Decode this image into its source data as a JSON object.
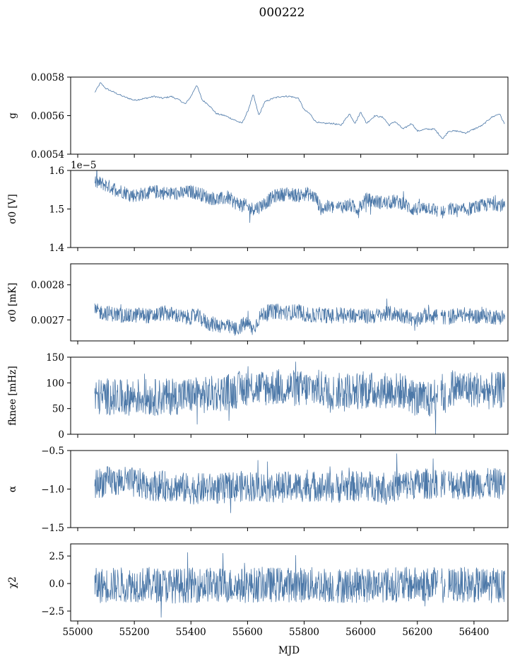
{
  "figure": {
    "title": "000222",
    "xlabel": "MJD",
    "x_tick_labels": [
      "55000",
      "55200",
      "55400",
      "55600",
      "55800",
      "56000",
      "56200",
      "56400"
    ]
  },
  "chart_data": [
    {
      "type": "line",
      "ylabel": "g",
      "ylabel_math": "g",
      "ylim": [
        0.0054,
        0.0058
      ],
      "yticks": [
        0.0054,
        0.0056,
        0.0058
      ],
      "ytick_labels": [
        "0.0054",
        "0.0056",
        "0.0058"
      ],
      "xlim": [
        54975,
        56520
      ],
      "series": [
        {
          "color": "#4c78a8",
          "x": [
            55060,
            55080,
            55100,
            55130,
            55160,
            55200,
            55240,
            55270,
            55300,
            55330,
            55360,
            55380,
            55400,
            55420,
            55440,
            55460,
            55490,
            55520,
            55550,
            55580,
            55600,
            55620,
            55640,
            55660,
            55690,
            55720,
            55750,
            55780,
            55800,
            55820,
            55840,
            55860,
            55880,
            55900,
            55930,
            55960,
            55980,
            56000,
            56020,
            56050,
            56080,
            56100,
            56120,
            56150,
            56180,
            56200,
            56230,
            56260,
            56290,
            56310,
            56340,
            56370,
            56400,
            56430,
            56460,
            56490,
            56510
          ],
          "values": [
            0.00572,
            0.00577,
            0.00574,
            0.00572,
            0.0057,
            0.00568,
            0.00569,
            0.0057,
            0.00569,
            0.0057,
            0.00568,
            0.00566,
            0.0057,
            0.00576,
            0.00568,
            0.00566,
            0.00561,
            0.0056,
            0.00558,
            0.00556,
            0.00562,
            0.00571,
            0.0056,
            0.00567,
            0.00569,
            0.0057,
            0.0057,
            0.00569,
            0.00563,
            0.00561,
            0.00557,
            0.00556,
            0.00556,
            0.00556,
            0.00555,
            0.00561,
            0.00556,
            0.00562,
            0.00556,
            0.0056,
            0.00559,
            0.00555,
            0.00557,
            0.00553,
            0.00556,
            0.00552,
            0.00553,
            0.00553,
            0.00548,
            0.00552,
            0.00552,
            0.00551,
            0.00553,
            0.00555,
            0.00559,
            0.00561,
            0.00555
          ]
        }
      ]
    },
    {
      "type": "line",
      "ylabel": "σ0 [V]",
      "ylabel_math": "sigma0",
      "ylabel_unit": "[V]",
      "offset_text": "1e−5",
      "ylim": [
        1.4,
        1.6
      ],
      "yticks": [
        1.4,
        1.5,
        1.6
      ],
      "ytick_labels": [
        "1.4",
        "1.5",
        "1.6"
      ],
      "xlim": [
        54975,
        56520
      ],
      "series": [
        {
          "color": "#4c78a8",
          "band": 0.018,
          "x": [
            55060,
            55090,
            55120,
            55160,
            55200,
            55240,
            55280,
            55320,
            55360,
            55400,
            55430,
            55460,
            55500,
            55530,
            55560,
            55590,
            55610,
            55640,
            55670,
            55700,
            55740,
            55780,
            55810,
            55840,
            55860,
            55880,
            55920,
            55960,
            55990,
            56020,
            56050,
            56090,
            56120,
            56150,
            56180,
            56210,
            56240,
            56270,
            56290,
            56320,
            56350,
            56380,
            56410,
            56440,
            56470,
            56500,
            56510
          ],
          "values": [
            1.57,
            1.565,
            1.555,
            1.545,
            1.535,
            1.54,
            1.545,
            1.54,
            1.54,
            1.545,
            1.54,
            1.53,
            1.525,
            1.53,
            1.515,
            1.51,
            1.5,
            1.505,
            1.52,
            1.535,
            1.54,
            1.535,
            1.54,
            1.53,
            1.5,
            1.505,
            1.505,
            1.51,
            1.5,
            1.525,
            1.52,
            1.515,
            1.52,
            1.515,
            1.5,
            1.5,
            1.505,
            1.495,
            1.49,
            1.5,
            1.495,
            1.5,
            1.505,
            1.51,
            1.515,
            1.51,
            1.505
          ]
        }
      ]
    },
    {
      "type": "line",
      "ylabel": "σ0 [mK]",
      "ylabel_math": "sigma0",
      "ylabel_unit": "[mK]",
      "ylim": [
        0.00264,
        0.00286
      ],
      "yticks": [
        0.0027,
        0.0028
      ],
      "ytick_labels": [
        "0.0027",
        "0.0028"
      ],
      "xlim": [
        54975,
        56520
      ],
      "series": [
        {
          "color": "#4c78a8",
          "band": 2.2e-05,
          "x": [
            55060,
            55100,
            55140,
            55180,
            55220,
            55260,
            55300,
            55340,
            55380,
            55420,
            55460,
            55500,
            55540,
            55560,
            55580,
            55600,
            55620,
            55640,
            55660,
            55700,
            55740,
            55780,
            55820,
            55860,
            55900,
            55940,
            55980,
            56020,
            56060,
            56100,
            56140,
            56170,
            56190,
            56220,
            56260,
            56280,
            56300,
            56320,
            56360,
            56400,
            56440,
            56480,
            56510
          ],
          "values": [
            0.002725,
            0.00272,
            0.002715,
            0.00271,
            0.002715,
            0.00271,
            0.00272,
            0.002715,
            0.002705,
            0.002712,
            0.00269,
            0.002685,
            0.002678,
            0.002672,
            0.002685,
            0.00269,
            0.002672,
            0.002705,
            0.00272,
            0.002725,
            0.00272,
            0.002725,
            0.00271,
            0.002715,
            0.00271,
            0.002718,
            0.002713,
            0.00271,
            0.002712,
            0.002718,
            0.002715,
            0.002708,
            0.00269,
            0.002712,
            0.002715,
            0.002712,
            0.002705,
            0.00271,
            0.002715,
            0.00271,
            0.002712,
            0.002708,
            0.00271
          ]
        }
      ]
    },
    {
      "type": "line",
      "ylabel": "fknee [mHz]",
      "ylabel_math": "fknee",
      "ylabel_unit": "[mHz]",
      "ylim": [
        0,
        150
      ],
      "yticks": [
        0,
        50,
        100,
        150
      ],
      "ytick_labels": [
        "0",
        "50",
        "100",
        "150"
      ],
      "xlim": [
        54975,
        56520
      ],
      "series": [
        {
          "color": "#4c78a8",
          "band": 36,
          "x": [
            55060,
            55100,
            55150,
            55200,
            55250,
            55300,
            55350,
            55400,
            55450,
            55500,
            55550,
            55600,
            55650,
            55700,
            55750,
            55800,
            55850,
            55900,
            55950,
            56000,
            56050,
            56100,
            56150,
            56200,
            56250,
            56280,
            56300,
            56320,
            56350,
            56400,
            56450,
            56510
          ],
          "values": [
            72,
            74,
            70,
            74,
            72,
            72,
            74,
            76,
            76,
            80,
            84,
            92,
            90,
            92,
            90,
            88,
            90,
            82,
            86,
            84,
            86,
            86,
            84,
            68,
            66,
            95,
            64,
            92,
            90,
            88,
            84,
            86
          ]
        }
      ]
    },
    {
      "type": "line",
      "ylabel": "α",
      "ylabel_math": "alpha",
      "ylim": [
        -1.5,
        -0.5
      ],
      "yticks": [
        -1.5,
        -1.0,
        -0.5
      ],
      "ytick_labels": [
        "−1.5",
        "−1.0",
        "−0.5"
      ],
      "xlim": [
        54975,
        56520
      ],
      "series": [
        {
          "color": "#4c78a8",
          "band": 0.2,
          "x": [
            55060,
            55100,
            55150,
            55200,
            55250,
            55300,
            55350,
            55400,
            55450,
            55500,
            55550,
            55600,
            55650,
            55700,
            55750,
            55800,
            55850,
            55900,
            55950,
            56000,
            56050,
            56100,
            56150,
            56200,
            56250,
            56280,
            56300,
            56350,
            56400,
            56450,
            56510
          ],
          "values": [
            -0.93,
            -0.9,
            -0.9,
            -0.92,
            -0.95,
            -0.96,
            -0.97,
            -1.0,
            -0.99,
            -1.0,
            -0.97,
            -0.96,
            -0.97,
            -0.98,
            -0.97,
            -0.97,
            -0.96,
            -0.99,
            -0.97,
            -0.96,
            -0.96,
            -0.98,
            -0.95,
            -0.93,
            -0.93,
            -0.9,
            -0.93,
            -0.94,
            -0.93,
            -0.93,
            -0.93
          ]
        }
      ]
    },
    {
      "type": "line",
      "ylabel": "χ2",
      "ylabel_math": "chi2",
      "ylim": [
        -3.4,
        3.6
      ],
      "yticks": [
        -2.5,
        0.0,
        2.5
      ],
      "ytick_labels": [
        "−2.5",
        "0.0",
        "2.5"
      ],
      "xlim": [
        54975,
        56520
      ],
      "series": [
        {
          "color": "#4c78a8",
          "band": 1.6,
          "x": [
            55060,
            55150,
            55250,
            55350,
            55450,
            55550,
            55650,
            55750,
            55850,
            55950,
            56050,
            56150,
            56250,
            56300,
            56350,
            56450,
            56510
          ],
          "values": [
            -0.2,
            -0.1,
            -0.1,
            -0.2,
            -0.1,
            -0.2,
            -0.1,
            -0.1,
            -0.1,
            -0.2,
            -0.1,
            -0.1,
            -0.1,
            -0.2,
            -0.1,
            -0.2,
            -0.1
          ]
        }
      ]
    }
  ]
}
